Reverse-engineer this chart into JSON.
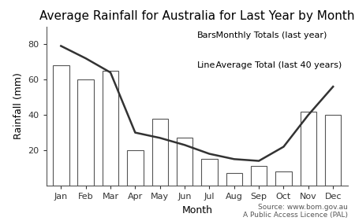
{
  "title": "Average Rainfall for Australia for Last Year by Month",
  "xlabel": "Month",
  "ylabel": "Rainfall (mm)",
  "months": [
    "Jan",
    "Feb",
    "Mar",
    "Apr",
    "May",
    "Jun",
    "Jul",
    "Aug",
    "Sep",
    "Oct",
    "Nov",
    "Dec"
  ],
  "bar_values": [
    68,
    60,
    65,
    20,
    38,
    27,
    15,
    7,
    11,
    8,
    42,
    40
  ],
  "line_values": [
    79,
    72,
    64,
    30,
    27,
    23,
    18,
    15,
    14,
    22,
    40,
    56
  ],
  "bar_color": "white",
  "bar_edgecolor": "#555555",
  "line_color": "#333333",
  "ylim": [
    0,
    90
  ],
  "yticks": [
    20,
    40,
    60,
    80
  ],
  "legend_bars_prefix": "Bars",
  "legend_bars_label": "   Monthly Totals (last year)",
  "legend_line_prefix": "Line",
  "legend_line_label": "   Average Total (last 40 years)",
  "source_text": "Source: www.bom.gov.au\nA Public Access Licence (PAL)",
  "bg_color": "#ffffff",
  "title_fontsize": 11,
  "axis_label_fontsize": 9,
  "tick_fontsize": 8,
  "legend_fontsize": 8,
  "source_fontsize": 6.5,
  "line_width": 1.8,
  "bar_linewidth": 0.8
}
